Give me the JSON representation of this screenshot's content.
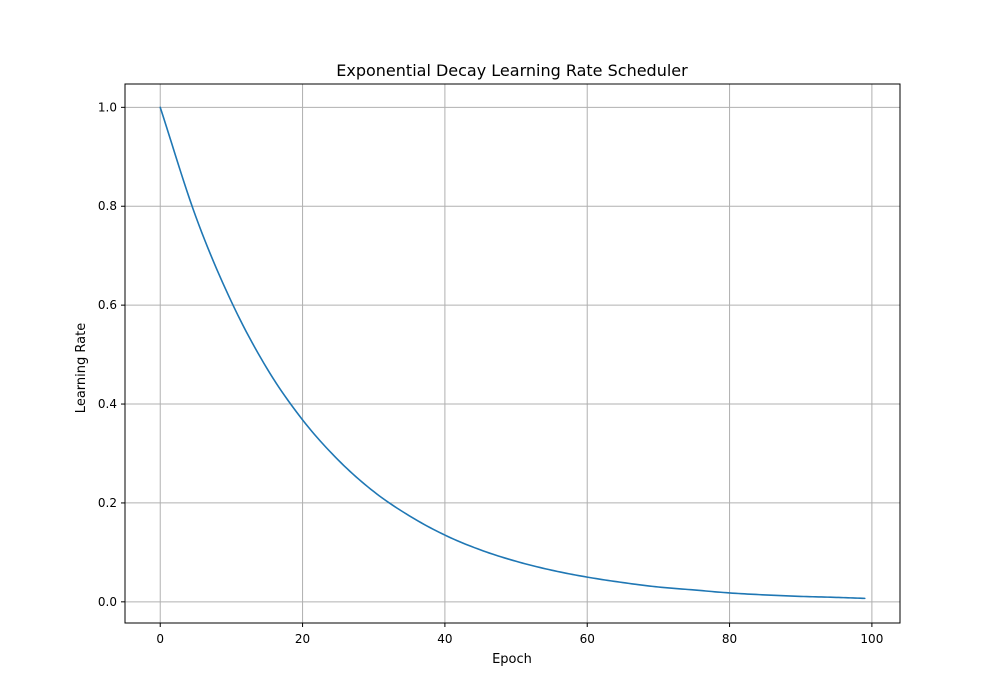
{
  "chart_data": {
    "type": "line",
    "title": "Exponential Decay Learning Rate Scheduler",
    "xlabel": "Epoch",
    "ylabel": "Learning Rate",
    "xlim": [
      -4.95,
      103.95
    ],
    "ylim": [
      -0.0428,
      1.0472
    ],
    "grid": true,
    "legend": "none",
    "xticks": [
      {
        "value": 0,
        "label": "0"
      },
      {
        "value": 20,
        "label": "20"
      },
      {
        "value": 40,
        "label": "40"
      },
      {
        "value": 60,
        "label": "60"
      },
      {
        "value": 80,
        "label": "80"
      },
      {
        "value": 100,
        "label": "100"
      }
    ],
    "yticks": [
      {
        "value": 0.0,
        "label": "0.0"
      },
      {
        "value": 0.2,
        "label": "0.2"
      },
      {
        "value": 0.4,
        "label": "0.4"
      },
      {
        "value": 0.6,
        "label": "0.6"
      },
      {
        "value": 0.8,
        "label": "0.8"
      },
      {
        "value": 1.0,
        "label": "1.0"
      }
    ],
    "series": [
      {
        "name": "learning_rate",
        "color": "#1f77b4",
        "x": [
          0,
          5,
          10,
          15,
          20,
          25,
          30,
          35,
          40,
          45,
          50,
          55,
          60,
          65,
          70,
          75,
          80,
          85,
          90,
          95,
          99
        ],
        "y": [
          1.0,
          0.779,
          0.607,
          0.472,
          0.368,
          0.287,
          0.223,
          0.174,
          0.135,
          0.105,
          0.082,
          0.064,
          0.05,
          0.039,
          0.03,
          0.024,
          0.018,
          0.014,
          0.011,
          0.009,
          0.007
        ]
      }
    ]
  }
}
